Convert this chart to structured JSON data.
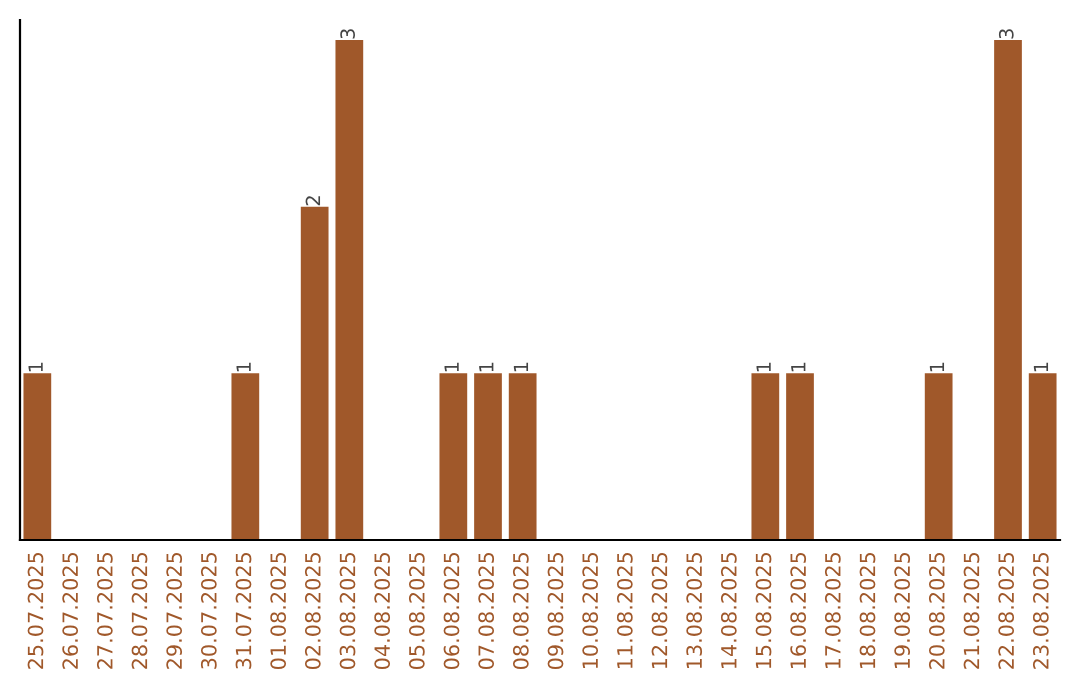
{
  "chart_data": {
    "type": "bar",
    "categories": [
      "25.07.2025",
      "26.07.2025",
      "27.07.2025",
      "28.07.2025",
      "29.07.2025",
      "30.07.2025",
      "31.07.2025",
      "01.08.2025",
      "02.08.2025",
      "03.08.2025",
      "04.08.2025",
      "05.08.2025",
      "06.08.2025",
      "07.08.2025",
      "08.08.2025",
      "09.08.2025",
      "10.08.2025",
      "11.08.2025",
      "12.08.2025",
      "13.08.2025",
      "14.08.2025",
      "15.08.2025",
      "16.08.2025",
      "17.08.2025",
      "18.08.2025",
      "19.08.2025",
      "20.08.2025",
      "21.08.2025",
      "22.08.2025",
      "23.08.2025"
    ],
    "values": [
      1,
      0,
      0,
      0,
      0,
      0,
      1,
      0,
      2,
      3,
      0,
      0,
      1,
      1,
      1,
      0,
      0,
      0,
      0,
      0,
      0,
      1,
      1,
      0,
      0,
      0,
      1,
      0,
      3,
      1
    ],
    "value_labels": [
      "1",
      null,
      null,
      null,
      null,
      null,
      "1",
      null,
      "2",
      "3",
      null,
      null,
      "1",
      "1",
      "1",
      null,
      null,
      null,
      null,
      null,
      null,
      "1",
      "1",
      null,
      null,
      null,
      "1",
      null,
      "3",
      "1"
    ],
    "color": "#a0582a",
    "ylim": [
      0,
      3.12
    ],
    "tick_labels": "x",
    "grid": false,
    "legend": false
  }
}
